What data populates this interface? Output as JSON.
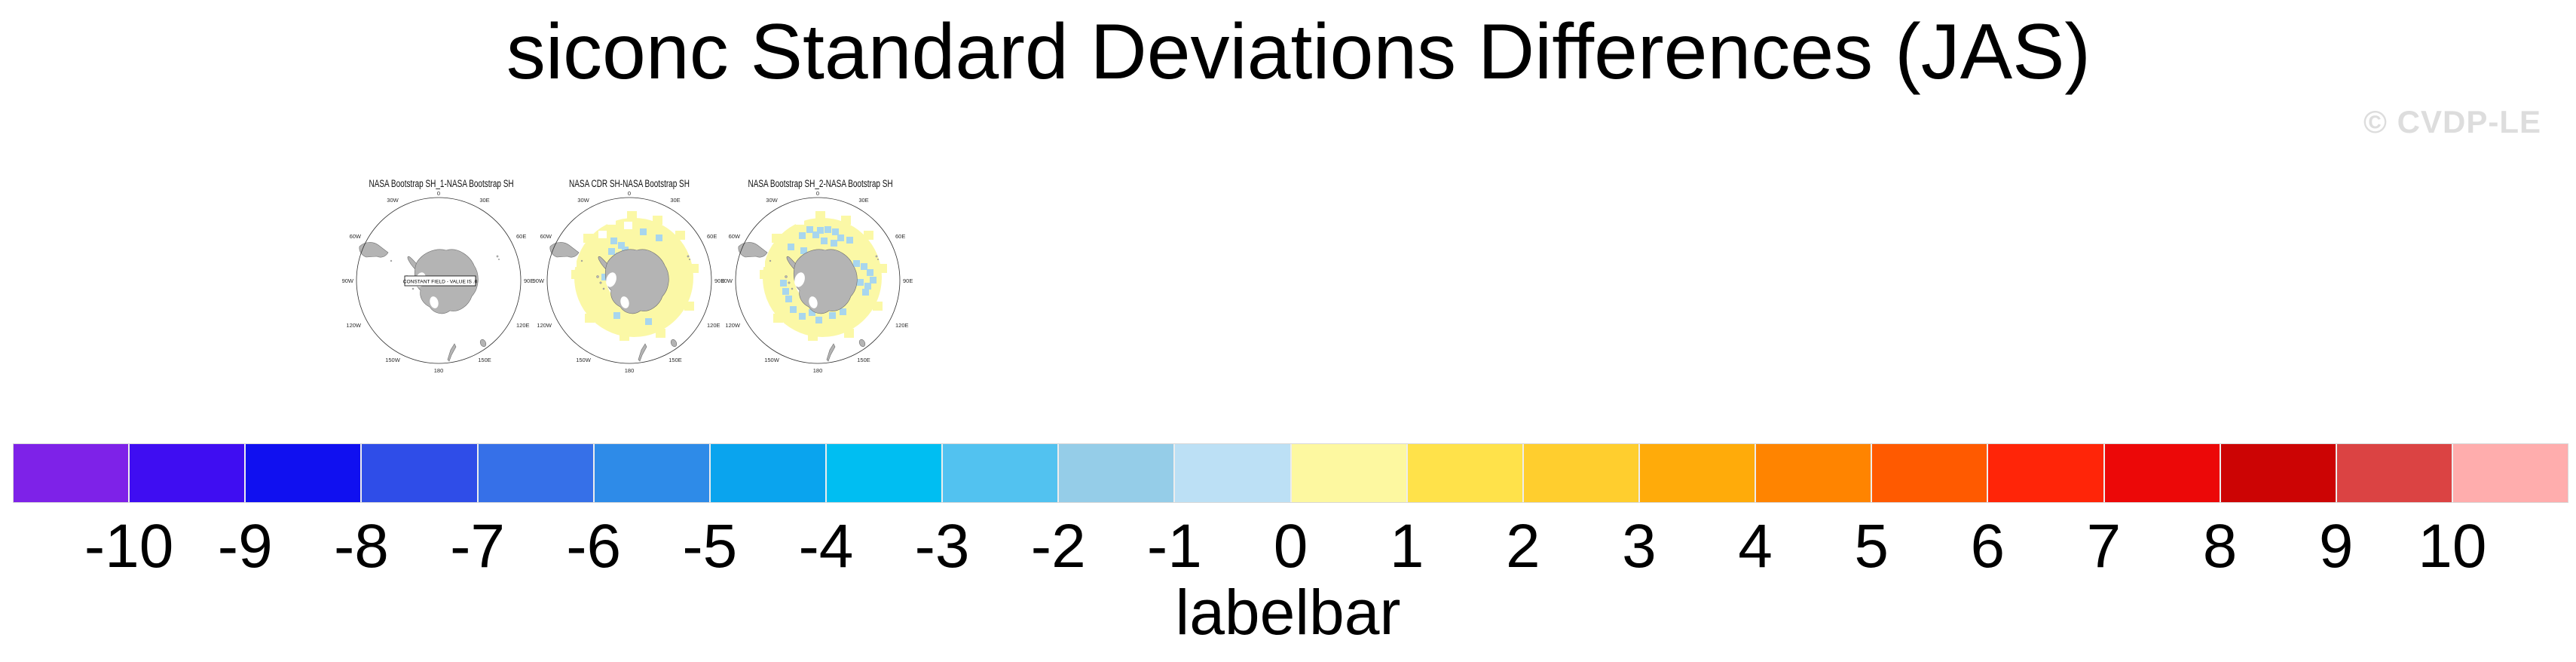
{
  "header": {
    "title": "siconc Standard Deviations Differences (JAS)",
    "watermark": "© CVDP-LE"
  },
  "panels": [
    {
      "title": "NASA Bootstrap SH_1-NASA Bootstrap SH",
      "note": "CONSTANT FIELD - VALUE IS .0"
    },
    {
      "title": "NASA CDR SH-NASA Bootstrap SH"
    },
    {
      "title": "NASA Bootstrap SH_2-NASA Bootstrap SH"
    }
  ],
  "map": {
    "lon_labels": [
      "0",
      "30E",
      "60E",
      "90E",
      "120E",
      "150E",
      "180",
      "150W",
      "120W",
      "90W",
      "60W",
      "30W"
    ],
    "colors": {
      "land": "#B4B4B4",
      "coast": "#6E6E6E",
      "boundary": "#2E2E2E",
      "ice_positive": "#FBF8A6",
      "ice_negative": "#A8D6EE"
    }
  },
  "labelbar": {
    "caption": "labelbar",
    "tick_labels": [
      "-10",
      "-9",
      "-8",
      "-7",
      "-6",
      "-5",
      "-4",
      "-3",
      "-2",
      "-1",
      "0",
      "1",
      "2",
      "3",
      "4",
      "5",
      "6",
      "7",
      "8",
      "9",
      "10"
    ],
    "colors": [
      "#7E22E8",
      "#3F0DF2",
      "#1010F0",
      "#2F4DE8",
      "#3670E8",
      "#2E8BE8",
      "#0AA4EE",
      "#00BEF2",
      "#52C2F0",
      "#95CDE8",
      "#BCE0F5",
      "#FDF8A0",
      "#FFE24A",
      "#FFCE2E",
      "#FFAB0A",
      "#FF8400",
      "#FF5A00",
      "#FF2508",
      "#EC0808",
      "#CC0404",
      "#DB4343",
      "#FFADAD"
    ]
  },
  "chart_data": {
    "type": "heatmap",
    "title": "siconc Standard Deviations Differences (JAS)",
    "variable": "siconc",
    "season": "JAS",
    "projection": "south polar",
    "panels": [
      {
        "title": "NASA Bootstrap SH_1-NASA Bootstrap SH",
        "note": "CONSTANT FIELD - VALUE IS .0",
        "values": "uniform 0 difference"
      },
      {
        "title": "NASA CDR SH-NASA Bootstrap SH",
        "values": "ring of 0 to 1 around Antarctica with scattered -2 to 0 patches"
      },
      {
        "title": "NASA Bootstrap SH_2-NASA Bootstrap SH",
        "values": "ring of 0 to 1 around Antarctica with many scattered -2 to 0 patches"
      }
    ],
    "colorbar": {
      "caption": "labelbar",
      "ticks": [
        -10,
        -9,
        -8,
        -7,
        -6,
        -5,
        -4,
        -3,
        -2,
        -1,
        0,
        1,
        2,
        3,
        4,
        5,
        6,
        7,
        8,
        9,
        10
      ],
      "n_colors": 22,
      "legend_position": "bottom"
    },
    "lon_gridline_labels": [
      "0",
      "30E",
      "60E",
      "90E",
      "120E",
      "150E",
      "180",
      "150W",
      "120W",
      "90W",
      "60W",
      "30W"
    ]
  }
}
